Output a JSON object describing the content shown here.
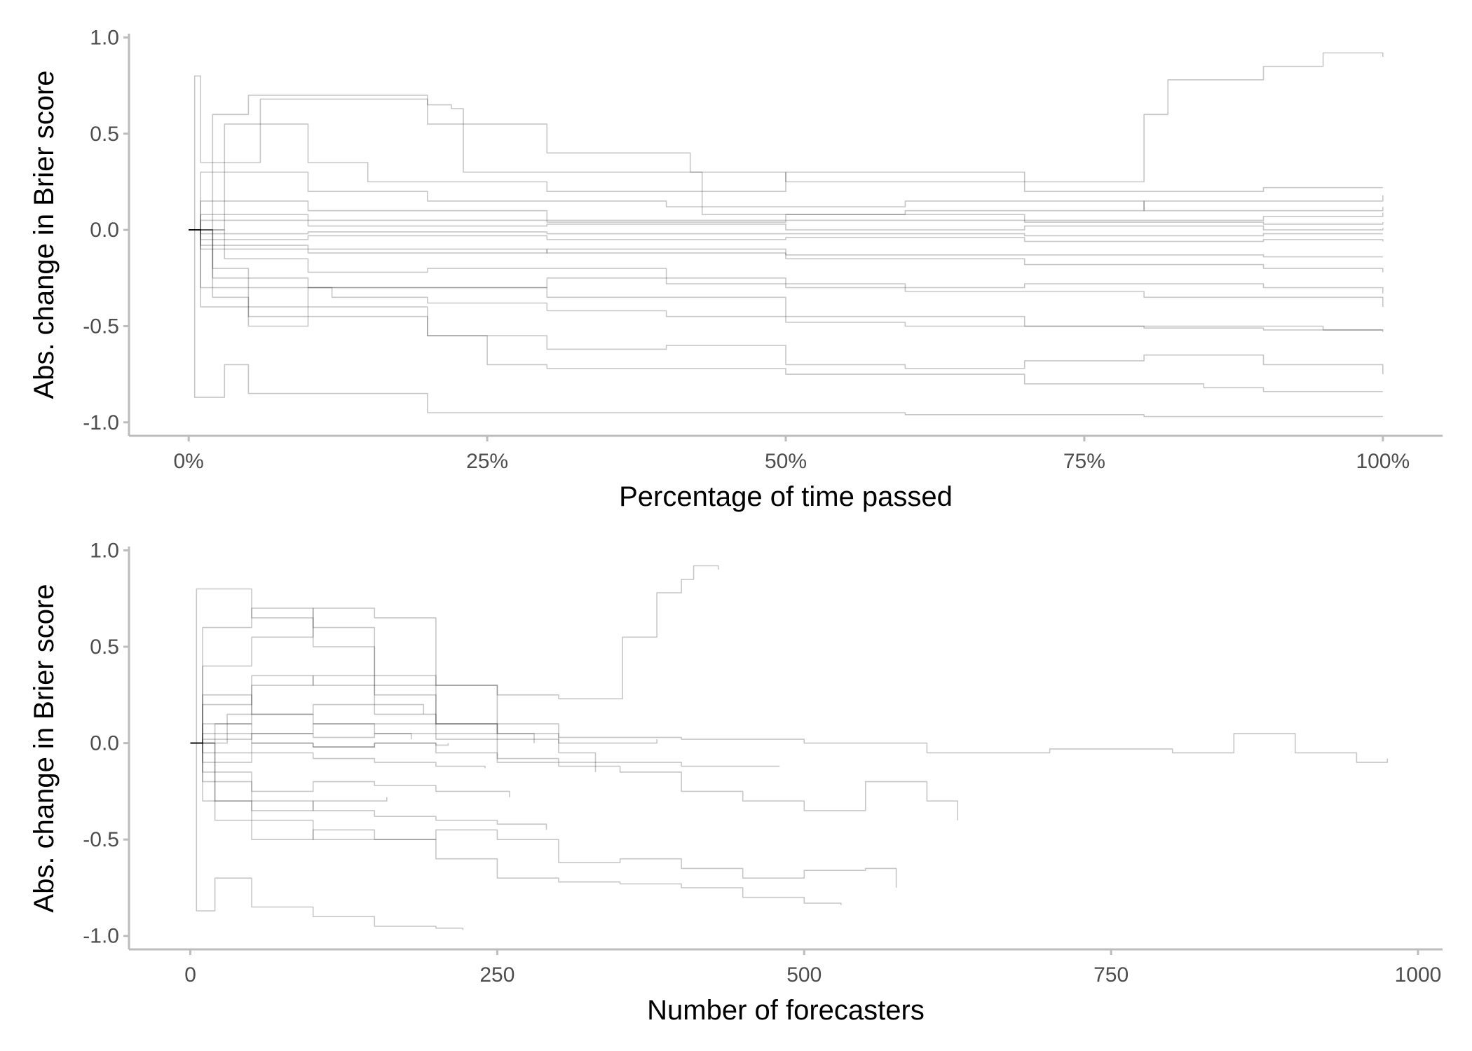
{
  "chart_data": [
    {
      "type": "line",
      "title": "",
      "xlabel": "Percentage of time passed",
      "ylabel": "Abs. change in Brier score",
      "xlim": [
        -0.05,
        1.05
      ],
      "ylim": [
        -1.07,
        1.02
      ],
      "x_ticks": [
        0,
        0.25,
        0.5,
        0.75,
        1.0
      ],
      "x_tick_labels": [
        "0%",
        "25%",
        "50%",
        "75%",
        "100%"
      ],
      "y_ticks": [
        -1.0,
        -0.5,
        0.0,
        0.5,
        1.0
      ],
      "y_tick_labels": [
        "-1.0",
        "-0.5",
        "0.0",
        "0.5",
        "1.0"
      ],
      "grid": false,
      "legend": "none",
      "line_color": "#000000",
      "series": [
        {
          "x": [
            0,
            0.005,
            0.01,
            0.06,
            0.2,
            0.22,
            0.23,
            0.5,
            0.77,
            0.8,
            0.82,
            0.9,
            0.95,
            1.0
          ],
          "y": [
            0,
            0.8,
            0.35,
            0.68,
            0.65,
            0.63,
            0.3,
            0.25,
            0.25,
            0.6,
            0.78,
            0.85,
            0.92,
            0.9
          ]
        },
        {
          "x": [
            0,
            0.005,
            0.03,
            0.05,
            0.2,
            0.5,
            0.6,
            0.8,
            1.0
          ],
          "y": [
            0,
            -0.87,
            -0.7,
            -0.85,
            -0.95,
            -0.95,
            -0.96,
            -0.97,
            -0.97
          ]
        },
        {
          "x": [
            0,
            0.01,
            0.05,
            0.1,
            0.2,
            0.25,
            0.3,
            0.5,
            0.7,
            0.85,
            0.9,
            1.0
          ],
          "y": [
            0,
            -0.3,
            -0.45,
            -0.4,
            -0.55,
            -0.7,
            -0.72,
            -0.75,
            -0.8,
            -0.82,
            -0.84,
            -0.84
          ]
        },
        {
          "x": [
            0,
            0.01,
            0.05,
            0.1,
            0.2,
            0.3,
            0.4,
            0.5,
            0.6,
            0.7,
            0.8,
            0.9,
            1.0
          ],
          "y": [
            0,
            -0.4,
            -0.5,
            -0.45,
            -0.55,
            -0.62,
            -0.6,
            -0.7,
            -0.72,
            -0.68,
            -0.65,
            -0.7,
            -0.75
          ]
        },
        {
          "x": [
            0,
            0.02,
            0.05,
            0.12,
            0.2,
            0.3,
            0.4,
            0.5,
            0.6,
            0.7,
            0.8,
            0.9,
            1.0
          ],
          "y": [
            0,
            -0.2,
            -0.3,
            -0.35,
            -0.38,
            -0.42,
            -0.45,
            -0.48,
            -0.5,
            -0.5,
            -0.51,
            -0.52,
            -0.52
          ]
        },
        {
          "x": [
            0,
            0.02,
            0.05,
            0.1,
            0.3,
            0.5,
            0.7,
            0.85,
            0.95,
            1.0
          ],
          "y": [
            0,
            -0.35,
            -0.4,
            -0.3,
            -0.35,
            -0.45,
            -0.5,
            -0.5,
            -0.52,
            -0.53
          ]
        },
        {
          "x": [
            0,
            0.03,
            0.1,
            0.15,
            0.3,
            0.5,
            0.7,
            0.9,
            1.0
          ],
          "y": [
            0,
            0.55,
            0.35,
            0.25,
            0.2,
            0.3,
            0.2,
            0.22,
            0.22
          ]
        },
        {
          "x": [
            0,
            0.02,
            0.05,
            0.2,
            0.3,
            0.42,
            0.43,
            0.6,
            0.8,
            1.0
          ],
          "y": [
            0,
            0.6,
            0.7,
            0.55,
            0.4,
            0.3,
            0.08,
            0.1,
            0.15,
            0.18
          ]
        },
        {
          "x": [
            0,
            0.03,
            0.1,
            0.2,
            0.4,
            0.6,
            0.8,
            1.0
          ],
          "y": [
            0,
            -0.15,
            -0.22,
            -0.2,
            -0.28,
            -0.32,
            -0.35,
            -0.4
          ]
        },
        {
          "x": [
            0,
            0.02,
            0.1,
            0.3,
            0.5,
            0.7,
            0.9,
            1.0
          ],
          "y": [
            0,
            -0.25,
            -0.3,
            -0.25,
            -0.3,
            -0.28,
            -0.3,
            -0.33
          ]
        },
        {
          "x": [
            0,
            0.01,
            0.1,
            0.2,
            0.4,
            0.6,
            0.8,
            1.0
          ],
          "y": [
            0,
            0.3,
            0.2,
            0.15,
            0.12,
            0.15,
            0.1,
            0.12
          ]
        },
        {
          "x": [
            0,
            0.01,
            0.1,
            0.3,
            0.5,
            0.7,
            0.9,
            1.0
          ],
          "y": [
            0,
            0.15,
            0.1,
            0.05,
            0.08,
            0.05,
            0.07,
            0.09
          ]
        },
        {
          "x": [
            0,
            0.01,
            0.1,
            0.3,
            0.5,
            0.7,
            0.9,
            1.0
          ],
          "y": [
            0,
            -0.1,
            -0.12,
            -0.1,
            -0.15,
            -0.18,
            -0.2,
            -0.22
          ]
        },
        {
          "x": [
            0,
            0.01,
            0.1,
            0.3,
            0.5,
            0.7,
            0.9,
            1.0
          ],
          "y": [
            0,
            0.05,
            0.02,
            0.03,
            0.0,
            0.02,
            0.0,
            0.01
          ]
        },
        {
          "x": [
            0,
            0.01,
            0.1,
            0.3,
            0.5,
            0.7,
            0.9,
            1.0
          ],
          "y": [
            0,
            -0.05,
            -0.03,
            -0.05,
            -0.04,
            -0.06,
            -0.05,
            -0.06
          ]
        },
        {
          "x": [
            0,
            0.01,
            0.1,
            0.3,
            0.5,
            0.7,
            0.9,
            1.0
          ],
          "y": [
            0,
            -0.08,
            -0.1,
            -0.12,
            -0.13,
            -0.13,
            -0.14,
            -0.14
          ]
        },
        {
          "x": [
            0,
            0.01,
            0.1,
            0.3,
            0.5,
            0.7,
            0.9,
            1.0
          ],
          "y": [
            0,
            0.08,
            0.05,
            0.04,
            0.05,
            0.04,
            0.03,
            0.04
          ]
        },
        {
          "x": [
            0,
            0.01,
            0.1,
            0.3,
            0.5,
            0.7,
            0.9,
            1.0
          ],
          "y": [
            0,
            -0.02,
            -0.01,
            -0.02,
            -0.02,
            -0.03,
            -0.02,
            -0.02
          ]
        }
      ]
    },
    {
      "type": "line",
      "title": "",
      "xlabel": "Number of forecasters",
      "ylabel": "Abs. change in Brier score",
      "xlim": [
        -50,
        1020
      ],
      "ylim": [
        -1.07,
        1.02
      ],
      "x_ticks": [
        0,
        250,
        500,
        750,
        1000
      ],
      "x_tick_labels": [
        "0",
        "250",
        "500",
        "750",
        "1000"
      ],
      "y_ticks": [
        -1.0,
        -0.5,
        0.0,
        0.5,
        1.0
      ],
      "y_tick_labels": [
        "-1.0",
        "-0.5",
        "0.0",
        "0.5",
        "1.0"
      ],
      "grid": false,
      "legend": "none",
      "line_color": "#000000",
      "series": [
        {
          "x": [
            0,
            5,
            50,
            100,
            150,
            200,
            250,
            300,
            350,
            352,
            380,
            400,
            410,
            430
          ],
          "y": [
            0,
            0.8,
            0.65,
            0.6,
            0.35,
            0.3,
            0.25,
            0.23,
            0.23,
            0.55,
            0.78,
            0.85,
            0.92,
            0.9
          ]
        },
        {
          "x": [
            0,
            5,
            20,
            50,
            100,
            150,
            200,
            222
          ],
          "y": [
            0,
            -0.87,
            -0.7,
            -0.85,
            -0.9,
            -0.95,
            -0.96,
            -0.97
          ]
        },
        {
          "x": [
            0,
            20,
            50,
            100,
            150,
            200,
            250,
            300,
            350,
            400,
            450,
            500,
            530
          ],
          "y": [
            0,
            -0.3,
            -0.4,
            -0.5,
            -0.5,
            -0.6,
            -0.7,
            -0.72,
            -0.73,
            -0.75,
            -0.8,
            -0.83,
            -0.84
          ]
        },
        {
          "x": [
            0,
            20,
            50,
            100,
            150,
            200,
            250,
            300,
            350,
            400,
            450,
            500,
            550,
            575
          ],
          "y": [
            0,
            -0.4,
            -0.5,
            -0.45,
            -0.5,
            -0.45,
            -0.5,
            -0.62,
            -0.6,
            -0.65,
            -0.7,
            -0.66,
            -0.65,
            -0.75
          ]
        },
        {
          "x": [
            0,
            20,
            50,
            100,
            150,
            200,
            250,
            300,
            350,
            400,
            450,
            500,
            550,
            600,
            625
          ],
          "y": [
            0,
            0.1,
            0.3,
            0.35,
            0.3,
            0.1,
            -0.1,
            -0.12,
            -0.15,
            -0.25,
            -0.3,
            -0.35,
            -0.2,
            -0.3,
            -0.4
          ]
        },
        {
          "x": [
            0,
            30,
            100,
            200,
            300,
            400,
            500,
            600,
            700,
            800,
            850,
            900,
            950,
            975
          ],
          "y": [
            0,
            0.15,
            0.1,
            0.05,
            0.03,
            0.02,
            0.0,
            -0.05,
            -0.03,
            -0.05,
            0.05,
            -0.05,
            -0.1,
            -0.08
          ]
        },
        {
          "x": [
            0,
            10,
            50,
            100,
            150,
            200,
            250,
            280
          ],
          "y": [
            0,
            0.6,
            0.7,
            0.5,
            0.25,
            0.1,
            0.05,
            0.0
          ]
        },
        {
          "x": [
            0,
            10,
            50,
            100,
            150,
            200,
            250,
            300,
            330
          ],
          "y": [
            0,
            0.4,
            0.55,
            0.7,
            0.65,
            0.3,
            0.1,
            -0.05,
            -0.15
          ]
        },
        {
          "x": [
            0,
            10,
            50,
            100,
            150,
            200,
            250,
            290
          ],
          "y": [
            0,
            -0.2,
            -0.3,
            -0.35,
            -0.38,
            -0.4,
            -0.42,
            -0.45
          ]
        },
        {
          "x": [
            0,
            10,
            50,
            100,
            150,
            200,
            260
          ],
          "y": [
            0,
            -0.15,
            -0.25,
            -0.2,
            -0.22,
            -0.25,
            -0.28
          ]
        },
        {
          "x": [
            0,
            10,
            50,
            100,
            150,
            200,
            250
          ],
          "y": [
            0,
            0.25,
            0.15,
            0.2,
            0.15,
            0.1,
            0.05
          ]
        },
        {
          "x": [
            0,
            10,
            50,
            100,
            150,
            200,
            240
          ],
          "y": [
            0,
            -0.1,
            -0.05,
            -0.08,
            -0.1,
            -0.12,
            -0.13
          ]
        },
        {
          "x": [
            0,
            10,
            50,
            100,
            150,
            200,
            250,
            300,
            350,
            400,
            450,
            480
          ],
          "y": [
            0,
            0.05,
            0.0,
            -0.02,
            0.0,
            -0.05,
            -0.08,
            -0.1,
            -0.1,
            -0.12,
            -0.12,
            -0.12
          ]
        },
        {
          "x": [
            0,
            10,
            50,
            100,
            150,
            180
          ],
          "y": [
            0,
            0.1,
            0.05,
            0.1,
            0.05,
            0.02
          ]
        },
        {
          "x": [
            0,
            10,
            50,
            100,
            150,
            200,
            210
          ],
          "y": [
            0,
            -0.05,
            0.0,
            -0.02,
            0.0,
            -0.01,
            0.0
          ]
        },
        {
          "x": [
            0,
            10,
            50,
            100,
            150,
            200,
            300,
            380
          ],
          "y": [
            0,
            0.02,
            0.05,
            0.03,
            0.05,
            0.02,
            0.0,
            0.02
          ]
        },
        {
          "x": [
            0,
            10,
            50,
            100,
            160
          ],
          "y": [
            0,
            -0.3,
            -0.35,
            -0.3,
            -0.28
          ]
        },
        {
          "x": [
            0,
            10,
            50,
            100,
            150,
            190
          ],
          "y": [
            0,
            0.2,
            0.35,
            0.3,
            0.2,
            0.15
          ]
        }
      ]
    }
  ]
}
